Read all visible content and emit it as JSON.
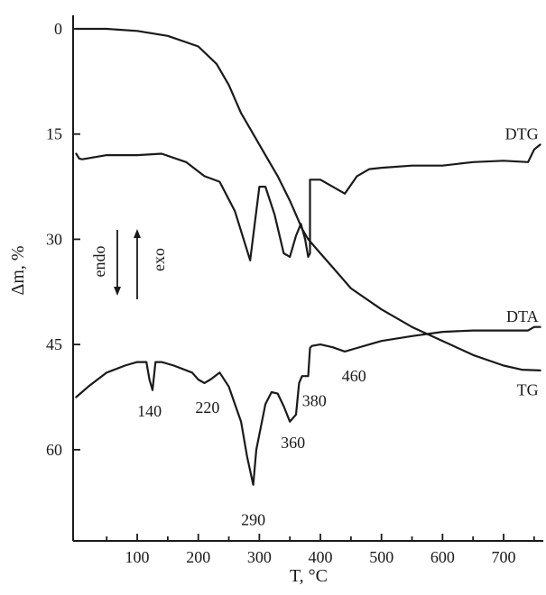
{
  "chart_data": {
    "type": "line",
    "xlabel": "T, °C",
    "ylabel": "Δm, %",
    "x_ticks": [
      100,
      200,
      300,
      400,
      500,
      600,
      700
    ],
    "y_ticks": [
      0,
      15,
      30,
      45,
      60
    ],
    "xlim": [
      -5,
      765
    ],
    "ylim": [
      0,
      73
    ],
    "y_inverted": true,
    "grid": false,
    "series": [
      {
        "name": "TG",
        "x": [
          0,
          50,
          100,
          150,
          200,
          230,
          250,
          270,
          290,
          310,
          330,
          350,
          360,
          370,
          380,
          400,
          420,
          450,
          500,
          550,
          600,
          650,
          700,
          730,
          760
        ],
        "y": [
          0,
          0,
          0.3,
          1,
          2.5,
          5,
          8,
          12,
          15,
          18,
          21,
          24.5,
          26.5,
          28.5,
          30,
          32,
          34,
          37,
          40,
          42.5,
          44.5,
          46.5,
          48,
          48.6,
          48.7
        ]
      },
      {
        "name": "DTG",
        "x": [
          0,
          5,
          10,
          50,
          100,
          140,
          180,
          210,
          235,
          260,
          285,
          300,
          310,
          325,
          340,
          350,
          360,
          368,
          375,
          380,
          383,
          383,
          400,
          420,
          440,
          460,
          480,
          500,
          550,
          600,
          650,
          700,
          740,
          750,
          760
        ],
        "y": [
          17.8,
          18.5,
          18.6,
          18,
          18,
          17.8,
          19,
          21,
          21.8,
          26,
          33,
          22.5,
          22.5,
          26.5,
          32,
          32.5,
          29.5,
          27.8,
          30,
          32.5,
          32,
          21.5,
          21.5,
          22.5,
          23.5,
          21,
          20,
          19.8,
          19.5,
          19.5,
          19,
          18.8,
          19,
          17.2,
          16.5
        ]
      },
      {
        "name": "DTA",
        "x": [
          0,
          20,
          50,
          80,
          100,
          115,
          120,
          125,
          130,
          140,
          160,
          190,
          200,
          210,
          220,
          235,
          250,
          270,
          280,
          290,
          295,
          310,
          320,
          330,
          340,
          350,
          360,
          365,
          370,
          375,
          380,
          383,
          386,
          400,
          420,
          440,
          460,
          480,
          500,
          550,
          600,
          650,
          700,
          740,
          750,
          760
        ],
        "y": [
          52.5,
          51,
          49,
          48,
          47.5,
          47.5,
          50,
          51.5,
          47.5,
          47.5,
          48,
          49,
          50,
          50.5,
          50,
          49,
          51,
          56,
          61,
          65,
          60,
          53.5,
          51.8,
          52,
          53.8,
          56,
          55,
          50.5,
          49.5,
          49.5,
          49.5,
          45.5,
          45.2,
          45,
          45.4,
          46,
          45.5,
          45,
          44.5,
          43.8,
          43.2,
          43,
          43,
          43,
          42.5,
          42.5
        ]
      }
    ],
    "curve_labels": [
      {
        "text": "DTG",
        "x": 760,
        "y": 15
      },
      {
        "text": "DTA",
        "x": 760,
        "y": 41
      },
      {
        "text": "TG",
        "x": 760,
        "y": 51.5
      }
    ],
    "annotations": [
      {
        "text": "140",
        "x": 120,
        "y": 54.5
      },
      {
        "text": "220",
        "x": 215,
        "y": 54
      },
      {
        "text": "290",
        "x": 290,
        "y": 70
      },
      {
        "text": "360",
        "x": 355,
        "y": 59
      },
      {
        "text": "380",
        "x": 390,
        "y": 53
      },
      {
        "text": "460",
        "x": 455,
        "y": 49.5
      }
    ],
    "legend_arrows": [
      {
        "text": "endo",
        "direction": "down"
      },
      {
        "text": "exo",
        "direction": "up"
      }
    ]
  }
}
